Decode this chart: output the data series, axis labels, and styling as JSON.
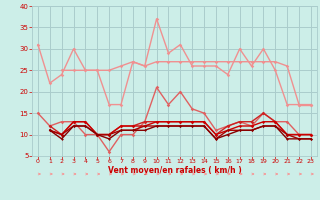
{
  "x": [
    0,
    1,
    2,
    3,
    4,
    5,
    6,
    7,
    8,
    9,
    10,
    11,
    12,
    13,
    14,
    15,
    16,
    17,
    18,
    19,
    20,
    21,
    22,
    23
  ],
  "series": [
    {
      "name": "rafales_top",
      "color": "#f09090",
      "lw": 1.0,
      "marker": "D",
      "ms": 1.8,
      "values": [
        31,
        22,
        24,
        30,
        25,
        25,
        17,
        17,
        27,
        26,
        37,
        29,
        31,
        26,
        26,
        26,
        24,
        30,
        26,
        30,
        25,
        17,
        17,
        null
      ]
    },
    {
      "name": "rafales_upper_band",
      "color": "#f09090",
      "lw": 1.0,
      "marker": "D",
      "ms": 1.8,
      "values": [
        null,
        null,
        25,
        25,
        25,
        25,
        25,
        26,
        27,
        26,
        27,
        27,
        27,
        27,
        27,
        27,
        27,
        27,
        27,
        27,
        27,
        26,
        17,
        17
      ]
    },
    {
      "name": "rafales_lower_band",
      "color": "#f09090",
      "lw": 1.0,
      "marker": "D",
      "ms": 1.8,
      "values": [
        null,
        null,
        null,
        null,
        null,
        null,
        null,
        null,
        null,
        null,
        null,
        null,
        null,
        null,
        null,
        null,
        null,
        null,
        null,
        null,
        null,
        null,
        17,
        17
      ]
    },
    {
      "name": "vent_upper",
      "color": "#e06060",
      "lw": 1.0,
      "marker": "D",
      "ms": 1.8,
      "values": [
        15,
        12,
        13,
        13,
        10,
        10,
        6,
        10,
        10,
        13,
        21,
        17,
        20,
        16,
        15,
        11,
        12,
        13,
        12,
        15,
        13,
        13,
        10,
        10
      ]
    },
    {
      "name": "vent_mid1",
      "color": "#cc2222",
      "lw": 1.0,
      "marker": "D",
      "ms": 1.8,
      "values": [
        null,
        12,
        10,
        13,
        13,
        10,
        10,
        12,
        12,
        13,
        13,
        13,
        13,
        13,
        13,
        10,
        12,
        13,
        13,
        15,
        13,
        10,
        10,
        10
      ]
    },
    {
      "name": "vent_mid2",
      "color": "#cc0000",
      "lw": 1.0,
      "marker": "D",
      "ms": 1.6,
      "values": [
        null,
        11,
        10,
        13,
        13,
        10,
        10,
        12,
        12,
        12,
        13,
        13,
        13,
        13,
        13,
        10,
        11,
        12,
        12,
        13,
        13,
        10,
        10,
        10
      ]
    },
    {
      "name": "vent_low1",
      "color": "#aa0000",
      "lw": 1.0,
      "marker": "D",
      "ms": 1.5,
      "values": [
        null,
        11,
        10,
        12,
        12,
        10,
        10,
        11,
        11,
        12,
        12,
        12,
        12,
        12,
        12,
        9,
        11,
        11,
        11,
        12,
        12,
        10,
        9,
        9
      ]
    },
    {
      "name": "vent_low2",
      "color": "#880000",
      "lw": 1.0,
      "marker": "D",
      "ms": 1.4,
      "values": [
        null,
        11,
        9,
        12,
        12,
        10,
        9,
        11,
        11,
        11,
        12,
        12,
        12,
        12,
        12,
        9,
        10,
        11,
        11,
        12,
        12,
        9,
        9,
        9
      ]
    }
  ],
  "xlabel": "Vent moyen/en rafales ( km/h )",
  "ylim": [
    5,
    40
  ],
  "xlim": [
    -0.5,
    23.5
  ],
  "yticks": [
    5,
    10,
    15,
    20,
    25,
    30,
    35,
    40
  ],
  "xticks": [
    0,
    1,
    2,
    3,
    4,
    5,
    6,
    7,
    8,
    9,
    10,
    11,
    12,
    13,
    14,
    15,
    16,
    17,
    18,
    19,
    20,
    21,
    22,
    23
  ],
  "bg_color": "#cceee8",
  "grid_color": "#aacccc",
  "tick_color": "#cc0000",
  "label_color": "#cc0000",
  "arrow_color": "#ff8888"
}
